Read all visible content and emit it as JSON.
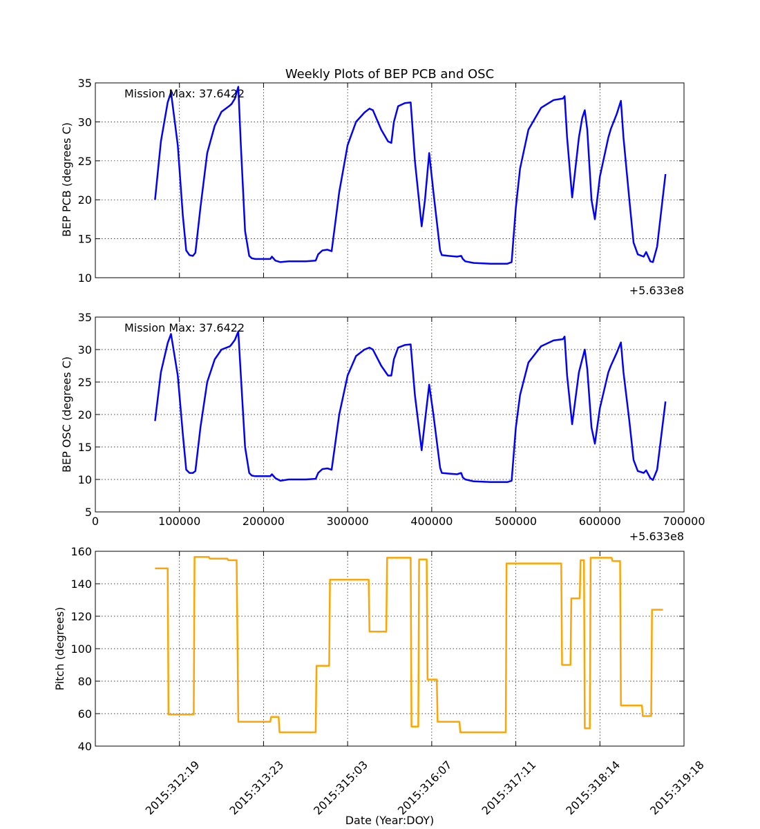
{
  "chart_data": [
    {
      "type": "line",
      "title": "Weekly Plots of BEP PCB and OSC",
      "ylabel": "BEP PCB (degrees C)",
      "xlabel": "",
      "offset_label": "+5.633e8",
      "annotation": "Mission Max: 37.6422",
      "xlim": [
        0,
        700000
      ],
      "ylim": [
        10,
        35
      ],
      "yticks": [
        10,
        15,
        20,
        25,
        30,
        35
      ],
      "xticks": [
        0,
        100000,
        200000,
        300000,
        400000,
        500000,
        600000,
        700000
      ],
      "show_xtick_labels": false,
      "grid": true,
      "color": "#0000ff",
      "series": [
        {
          "x": [
            71000,
            78000,
            86000,
            90000,
            98000,
            104000,
            108000,
            112000,
            116000,
            119000,
            125000,
            133000,
            142000,
            150000,
            160000,
            162000,
            166000,
            170000,
            173000,
            178000,
            183000,
            186000,
            190000,
            200000,
            208000,
            210000,
            214000,
            220000,
            230000,
            250000,
            262000,
            265000,
            270000,
            276000,
            281000,
            290000,
            300000,
            310000,
            320000,
            326000,
            330000,
            340000,
            348000,
            352000,
            355000,
            360000,
            368000,
            375000,
            380000,
            388000,
            392000,
            397000,
            402000,
            410000,
            412000,
            420000,
            430000,
            435000,
            437000,
            440000,
            450000,
            470000,
            490000,
            495000,
            500000,
            505000,
            515000,
            530000,
            545000,
            556000,
            558000,
            561000,
            567000,
            575000,
            579000,
            582000,
            585000,
            590000,
            594000,
            600000,
            610000,
            613000,
            620000,
            625000,
            628000,
            635000,
            640000,
            645000,
            652000,
            655000,
            660000,
            663000,
            668000,
            678000
          ],
          "y": [
            20.0,
            27.5,
            32.5,
            33.8,
            27.0,
            18.0,
            13.5,
            12.9,
            12.8,
            13.2,
            19.0,
            26.0,
            29.5,
            31.3,
            32.1,
            32.3,
            33.0,
            34.5,
            27.0,
            16.0,
            12.8,
            12.5,
            12.4,
            12.4,
            12.4,
            12.7,
            12.2,
            12.0,
            12.1,
            12.1,
            12.2,
            13.0,
            13.5,
            13.6,
            13.4,
            21.0,
            27.0,
            30.0,
            31.2,
            31.7,
            31.5,
            29.0,
            27.5,
            27.3,
            30.0,
            32.0,
            32.4,
            32.5,
            25.0,
            16.6,
            20.0,
            26.0,
            21.0,
            13.5,
            12.9,
            12.8,
            12.7,
            12.8,
            12.4,
            12.1,
            11.9,
            11.8,
            11.8,
            12.0,
            19.0,
            24.0,
            29.0,
            31.8,
            32.8,
            33.0,
            33.3,
            28.0,
            20.3,
            28.0,
            30.5,
            31.5,
            29.0,
            20.0,
            17.5,
            23.0,
            28.0,
            29.1,
            31.0,
            32.7,
            28.0,
            20.0,
            14.5,
            13.0,
            12.7,
            13.3,
            12.1,
            12.0,
            14.0,
            23.3
          ]
        }
      ]
    },
    {
      "type": "line",
      "title": "",
      "ylabel": "BEP OSC (degrees C)",
      "xlabel": "",
      "offset_label": "+5.633e8",
      "annotation": "Mission Max: 37.6422",
      "xlim": [
        0,
        700000
      ],
      "ylim": [
        5,
        35
      ],
      "yticks": [
        5,
        10,
        15,
        20,
        25,
        30,
        35
      ],
      "xticks": [
        0,
        100000,
        200000,
        300000,
        400000,
        500000,
        600000,
        700000
      ],
      "xtick_labels": [
        "0",
        "100000",
        "200000",
        "300000",
        "400000",
        "500000",
        "600000",
        "700000"
      ],
      "show_xtick_labels": true,
      "grid": true,
      "color": "#0000ff",
      "series": [
        {
          "x": [
            71000,
            78000,
            86000,
            90000,
            98000,
            104000,
            108000,
            112000,
            116000,
            119000,
            125000,
            133000,
            142000,
            150000,
            160000,
            162000,
            166000,
            170000,
            173000,
            178000,
            183000,
            186000,
            190000,
            200000,
            208000,
            210000,
            214000,
            220000,
            230000,
            250000,
            262000,
            265000,
            270000,
            276000,
            281000,
            290000,
            300000,
            310000,
            320000,
            326000,
            330000,
            340000,
            348000,
            352000,
            355000,
            360000,
            368000,
            375000,
            380000,
            388000,
            392000,
            397000,
            402000,
            410000,
            412000,
            420000,
            430000,
            435000,
            437000,
            440000,
            450000,
            470000,
            490000,
            495000,
            500000,
            505000,
            515000,
            530000,
            545000,
            556000,
            558000,
            561000,
            567000,
            575000,
            579000,
            582000,
            585000,
            590000,
            594000,
            600000,
            610000,
            613000,
            620000,
            625000,
            628000,
            635000,
            640000,
            645000,
            652000,
            655000,
            660000,
            663000,
            668000,
            678000
          ],
          "y": [
            19.0,
            26.5,
            31.0,
            32.4,
            26.0,
            17.0,
            11.5,
            11.0,
            11.0,
            11.3,
            18.0,
            25.0,
            28.5,
            30.0,
            30.5,
            30.8,
            31.5,
            32.8,
            26.0,
            15.0,
            11.0,
            10.6,
            10.5,
            10.5,
            10.5,
            10.8,
            10.2,
            9.8,
            10.0,
            10.0,
            10.1,
            11.0,
            11.6,
            11.7,
            11.5,
            20.0,
            26.0,
            29.0,
            30.0,
            30.3,
            30.0,
            27.5,
            26.0,
            26.0,
            28.5,
            30.3,
            30.7,
            30.8,
            23.0,
            14.5,
            19.0,
            24.6,
            20.0,
            11.8,
            11.0,
            10.9,
            10.8,
            11.0,
            10.3,
            10.0,
            9.7,
            9.6,
            9.6,
            9.8,
            18.0,
            23.0,
            28.0,
            30.5,
            31.4,
            31.6,
            32.0,
            26.0,
            18.5,
            26.5,
            28.5,
            30.0,
            27.0,
            18.0,
            15.5,
            21.0,
            26.5,
            27.5,
            29.5,
            31.1,
            26.5,
            19.0,
            13.0,
            11.3,
            11.0,
            11.4,
            10.2,
            9.9,
            11.5,
            22.0
          ]
        }
      ]
    },
    {
      "type": "line",
      "title": "",
      "ylabel": "Pitch (degrees)",
      "xlabel": "Date (Year:DOY)",
      "xlim": [
        0,
        700000
      ],
      "ylim": [
        40,
        160
      ],
      "yticks": [
        40,
        60,
        80,
        100,
        120,
        140,
        160
      ],
      "xticks": [
        100000,
        200000,
        300000,
        400000,
        500000,
        600000,
        700000
      ],
      "xtick_labels": [
        "2015:312:19",
        "2015:313:23",
        "2015:315:03",
        "2015:316:07",
        "2015:317:11",
        "2015:318:14",
        "2015:319:18"
      ],
      "show_xtick_labels": true,
      "grid": true,
      "color": "#ffa500",
      "series": [
        {
          "x": [
            71000,
            86000,
            87000,
            117000,
            118000,
            135000,
            136000,
            157000,
            158000,
            168000,
            170000,
            208000,
            209000,
            218000,
            219000,
            262000,
            263000,
            278000,
            279000,
            325000,
            326000,
            346000,
            347000,
            375000,
            376000,
            384000,
            385000,
            394000,
            395000,
            406000,
            407000,
            433000,
            434000,
            488000,
            489000,
            554000,
            555000,
            565000,
            566000,
            576000,
            577000,
            581000,
            582000,
            588000,
            589000,
            614000,
            615000,
            624000,
            625000,
            650000,
            651000,
            661000,
            662000,
            675000
          ],
          "y": [
            149.5,
            149.5,
            59.5,
            59.5,
            156.5,
            156.5,
            155.5,
            155.5,
            154.5,
            154.5,
            55.0,
            55.0,
            58.0,
            58.0,
            48.5,
            48.5,
            89.5,
            89.5,
            142.5,
            142.5,
            110.5,
            110.5,
            156.0,
            156.0,
            52.0,
            52.0,
            155.0,
            155.0,
            81.0,
            81.0,
            55.0,
            55.0,
            48.5,
            48.5,
            152.5,
            152.5,
            90.0,
            90.0,
            131.0,
            131.0,
            154.5,
            154.5,
            51.0,
            51.0,
            156.0,
            156.0,
            154.0,
            154.0,
            65.0,
            65.0,
            58.5,
            58.5,
            124.0,
            124.0
          ]
        }
      ]
    }
  ]
}
